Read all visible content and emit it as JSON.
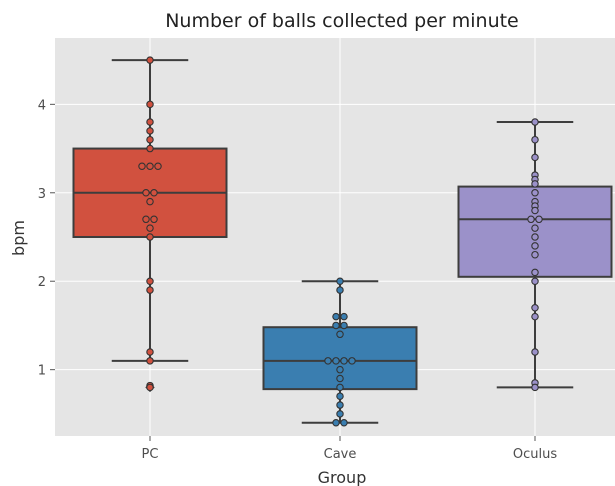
{
  "chart_data": {
    "type": "box",
    "title": "Number of balls collected per minute",
    "xlabel": "Group",
    "ylabel": "bpm",
    "ylim": [
      0.25,
      4.75
    ],
    "yticks": [
      1,
      2,
      3,
      4
    ],
    "grid": true,
    "background": "#e5e5e5",
    "gridColor": "#ffffff",
    "categories": [
      "PC",
      "Cave",
      "Oculus"
    ],
    "series": [
      {
        "category": "PC",
        "color": "#d1513f",
        "box": {
          "whisker_low": 1.1,
          "q1": 2.5,
          "median": 3.0,
          "q3": 3.5,
          "whisker_high": 4.5
        },
        "points": [
          4.5,
          4.0,
          3.8,
          3.7,
          3.6,
          3.5,
          3.3,
          3.3,
          3.3,
          3.0,
          3.0,
          2.9,
          2.7,
          2.7,
          2.6,
          2.5,
          2.0,
          1.9,
          1.2,
          1.1,
          0.82,
          0.8
        ],
        "outliers": [
          0.8
        ]
      },
      {
        "category": "Cave",
        "color": "#3a7eb0",
        "box": {
          "whisker_low": 0.4,
          "q1": 0.78,
          "median": 1.1,
          "q3": 1.48,
          "whisker_high": 2.0
        },
        "points": [
          2.0,
          1.9,
          1.6,
          1.6,
          1.5,
          1.5,
          1.4,
          1.1,
          1.1,
          1.1,
          1.1,
          1.0,
          0.9,
          0.8,
          0.7,
          0.6,
          0.5,
          0.4,
          0.4
        ],
        "outliers": []
      },
      {
        "category": "Oculus",
        "color": "#9b91c9",
        "box": {
          "whisker_low": 0.8,
          "q1": 2.05,
          "median": 2.7,
          "q3": 3.07,
          "whisker_high": 3.8
        },
        "points": [
          3.8,
          3.6,
          3.4,
          3.2,
          3.15,
          3.1,
          3.0,
          2.9,
          2.85,
          2.8,
          2.7,
          2.7,
          2.6,
          2.5,
          2.4,
          2.3,
          2.1,
          2.0,
          1.7,
          1.6,
          1.2,
          0.85,
          0.8
        ],
        "outliers": []
      }
    ]
  }
}
